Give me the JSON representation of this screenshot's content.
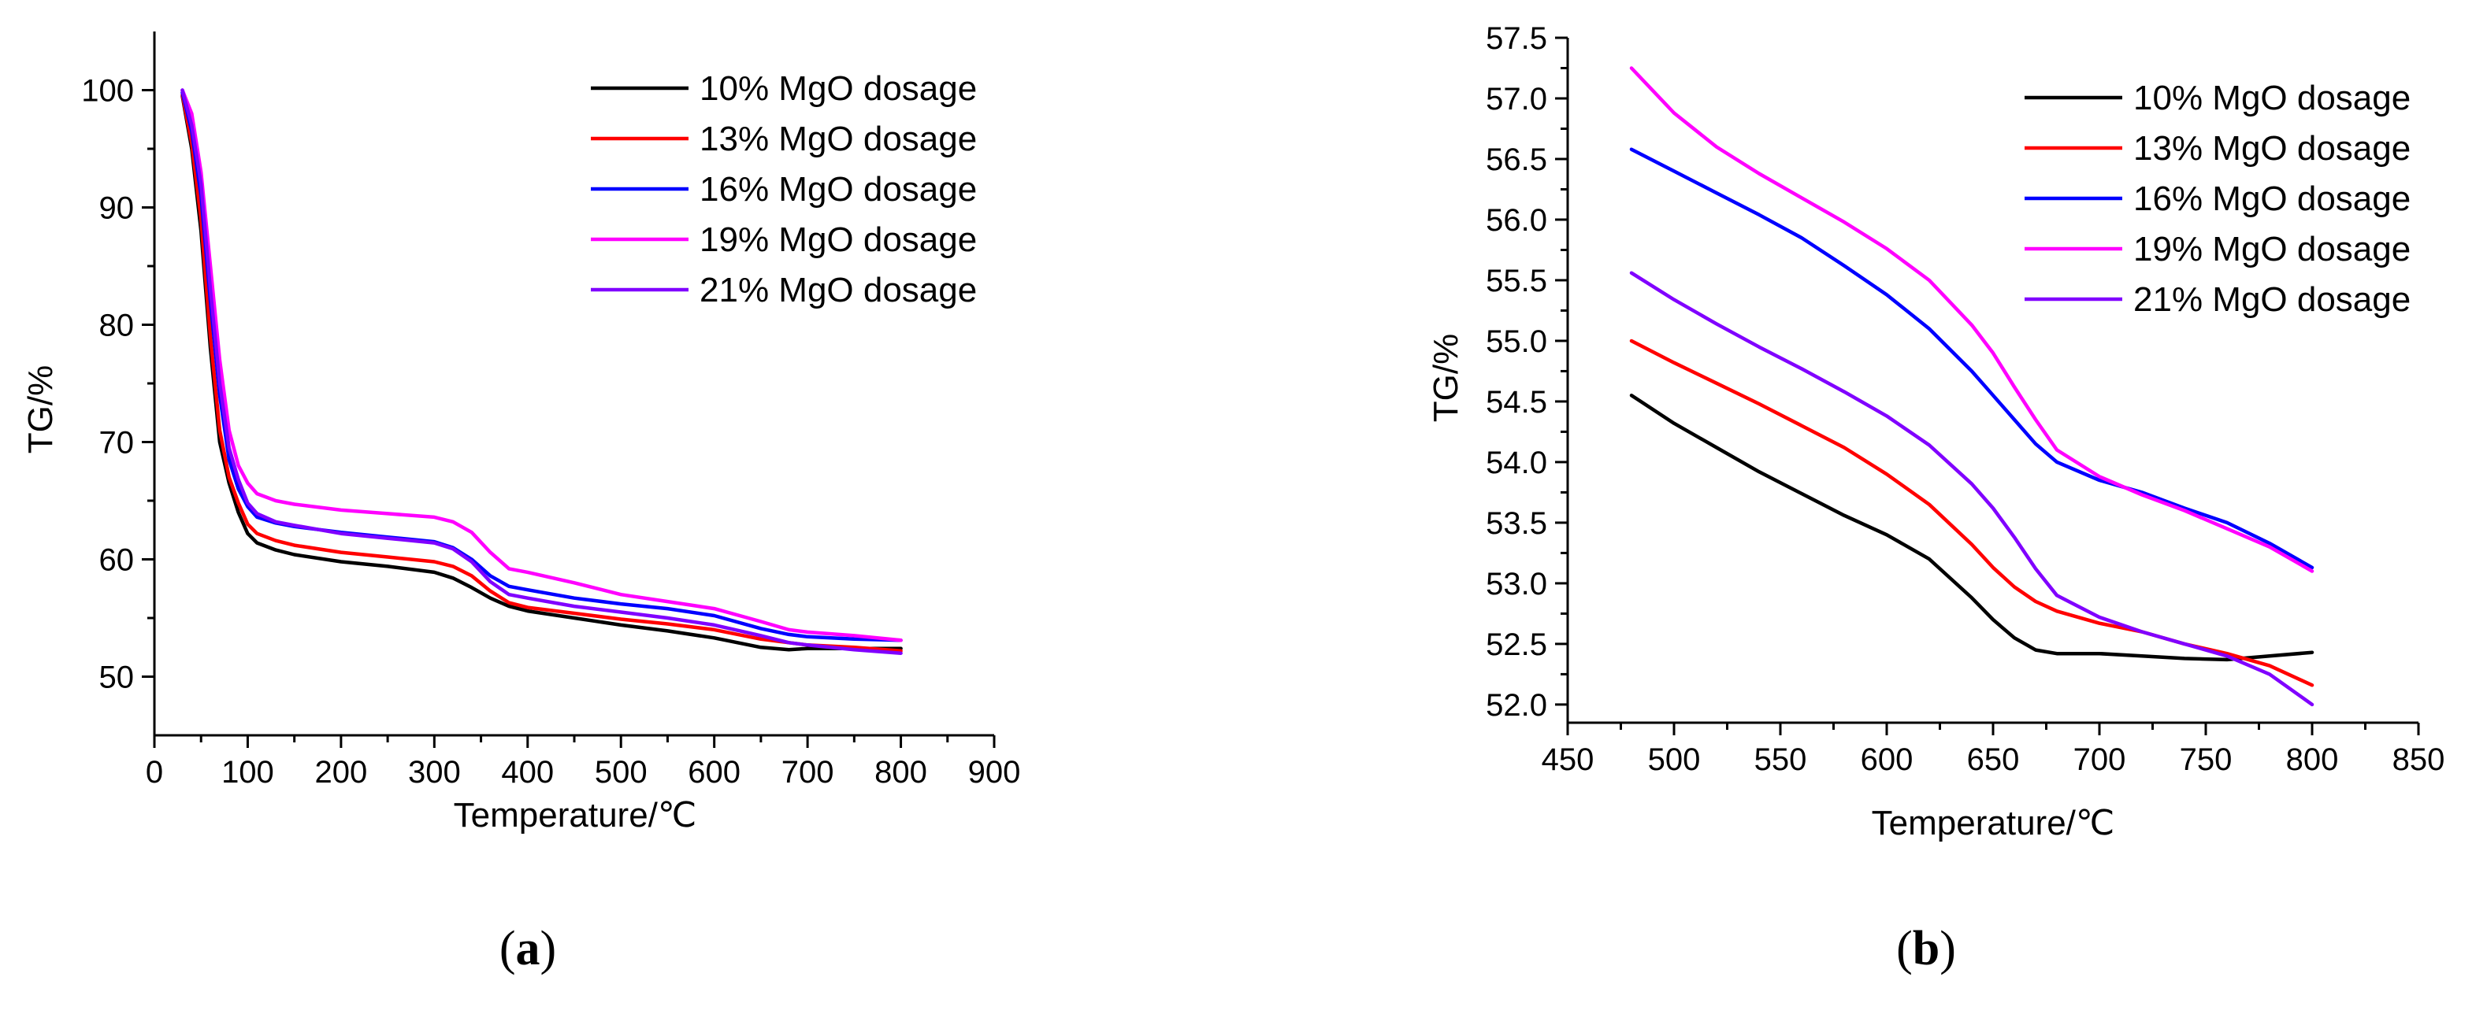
{
  "panel_labels": {
    "a": "a",
    "b": "b"
  },
  "chart_data": [
    {
      "id": "a",
      "type": "line",
      "xlabel": "Temperature/℃",
      "ylabel": "TG/%",
      "xlim": [
        0,
        900
      ],
      "ylim": [
        45,
        105
      ],
      "xticks": [
        0,
        100,
        200,
        300,
        400,
        500,
        600,
        700,
        800,
        900
      ],
      "yticks": [
        50,
        60,
        70,
        80,
        90,
        100
      ],
      "legend_position": "top-right",
      "series": [
        {
          "name": "10% MgO dosage",
          "color": "#000000",
          "x": [
            30,
            40,
            50,
            60,
            70,
            80,
            90,
            100,
            110,
            130,
            150,
            200,
            250,
            300,
            320,
            340,
            360,
            380,
            400,
            450,
            500,
            550,
            600,
            650,
            680,
            700,
            750,
            800
          ],
          "y": [
            99.5,
            95,
            88,
            78,
            70,
            66.5,
            64,
            62.2,
            61.4,
            60.8,
            60.4,
            59.8,
            59.4,
            58.9,
            58.4,
            57.6,
            56.7,
            56.0,
            55.6,
            55.0,
            54.4,
            53.9,
            53.3,
            52.5,
            52.3,
            52.4,
            52.4,
            52.4
          ]
        },
        {
          "name": "13% MgO dosage",
          "color": "#ff0000",
          "x": [
            30,
            40,
            50,
            60,
            70,
            80,
            90,
            100,
            110,
            130,
            150,
            200,
            250,
            300,
            320,
            340,
            360,
            380,
            400,
            450,
            500,
            550,
            600,
            650,
            680,
            700,
            750,
            800
          ],
          "y": [
            99.6,
            95.5,
            89,
            79,
            71,
            67,
            64.8,
            63.0,
            62.2,
            61.6,
            61.2,
            60.6,
            60.2,
            59.8,
            59.4,
            58.6,
            57.3,
            56.3,
            55.9,
            55.4,
            54.9,
            54.5,
            54.0,
            53.2,
            52.9,
            52.7,
            52.5,
            52.2
          ]
        },
        {
          "name": "16% MgO dosage",
          "color": "#0000ff",
          "x": [
            30,
            40,
            50,
            60,
            70,
            80,
            90,
            100,
            110,
            130,
            150,
            200,
            250,
            300,
            320,
            340,
            360,
            380,
            400,
            450,
            500,
            550,
            600,
            650,
            680,
            700,
            750,
            800
          ],
          "y": [
            99.8,
            96.5,
            91,
            82,
            74,
            68.5,
            66,
            64.5,
            63.6,
            63.1,
            62.8,
            62.3,
            61.9,
            61.5,
            61.0,
            60.0,
            58.6,
            57.7,
            57.4,
            56.7,
            56.2,
            55.8,
            55.2,
            54.1,
            53.6,
            53.4,
            53.2,
            53.1
          ]
        },
        {
          "name": "19% MgO dosage",
          "color": "#ff00ff",
          "x": [
            30,
            40,
            50,
            60,
            70,
            80,
            90,
            100,
            110,
            130,
            150,
            200,
            250,
            300,
            320,
            340,
            360,
            380,
            400,
            450,
            500,
            550,
            600,
            650,
            680,
            700,
            750,
            800
          ],
          "y": [
            100,
            98,
            93,
            85,
            77,
            71,
            68,
            66.5,
            65.6,
            65.0,
            64.7,
            64.2,
            63.9,
            63.6,
            63.2,
            62.3,
            60.6,
            59.2,
            58.9,
            58.0,
            57.0,
            56.4,
            55.8,
            54.7,
            54.0,
            53.8,
            53.5,
            53.1
          ]
        },
        {
          "name": "21% MgO dosage",
          "color": "#8000ff",
          "x": [
            30,
            40,
            50,
            60,
            70,
            80,
            90,
            100,
            110,
            130,
            150,
            200,
            250,
            300,
            320,
            340,
            360,
            380,
            400,
            450,
            500,
            550,
            600,
            650,
            680,
            700,
            750,
            800
          ],
          "y": [
            100,
            97,
            92,
            83,
            75,
            69.5,
            66.8,
            64.8,
            63.9,
            63.2,
            62.9,
            62.2,
            61.8,
            61.4,
            60.9,
            59.8,
            58.1,
            57.0,
            56.7,
            56.0,
            55.5,
            55.0,
            54.4,
            53.5,
            52.9,
            52.7,
            52.3,
            52.0
          ]
        }
      ]
    },
    {
      "id": "b",
      "type": "line",
      "xlabel": "Temperature/℃",
      "ylabel": "TG/%",
      "xlim": [
        450,
        850
      ],
      "ylim": [
        51.85,
        57.5
      ],
      "xticks": [
        450,
        500,
        550,
        600,
        650,
        700,
        750,
        800,
        850
      ],
      "yticks": [
        52.0,
        52.5,
        53.0,
        53.5,
        54.0,
        54.5,
        55.0,
        55.5,
        56.0,
        56.5,
        57.0,
        57.5
      ],
      "legend_position": "top-right",
      "series": [
        {
          "name": "10% MgO dosage",
          "color": "#000000",
          "x": [
            480,
            500,
            520,
            540,
            560,
            580,
            600,
            620,
            640,
            650,
            660,
            670,
            680,
            700,
            720,
            740,
            760,
            780,
            800
          ],
          "y": [
            54.55,
            54.32,
            54.12,
            53.92,
            53.74,
            53.56,
            53.4,
            53.2,
            52.88,
            52.7,
            52.55,
            52.45,
            52.42,
            52.42,
            52.4,
            52.38,
            52.37,
            52.4,
            52.43
          ]
        },
        {
          "name": "13% MgO dosage",
          "color": "#ff0000",
          "x": [
            480,
            500,
            520,
            540,
            560,
            580,
            600,
            620,
            640,
            650,
            660,
            670,
            680,
            700,
            720,
            740,
            760,
            780,
            800
          ],
          "y": [
            55.0,
            54.82,
            54.65,
            54.48,
            54.3,
            54.12,
            53.9,
            53.65,
            53.32,
            53.13,
            52.97,
            52.85,
            52.77,
            52.67,
            52.6,
            52.5,
            52.42,
            52.32,
            52.16
          ]
        },
        {
          "name": "16% MgO dosage",
          "color": "#0000ff",
          "x": [
            480,
            500,
            520,
            540,
            560,
            580,
            600,
            620,
            640,
            650,
            660,
            670,
            680,
            700,
            720,
            740,
            760,
            780,
            800
          ],
          "y": [
            56.58,
            56.4,
            56.22,
            56.04,
            55.85,
            55.62,
            55.38,
            55.1,
            54.75,
            54.55,
            54.35,
            54.15,
            54.0,
            53.85,
            53.75,
            53.62,
            53.5,
            53.33,
            53.13
          ]
        },
        {
          "name": "19% MgO dosage",
          "color": "#ff00ff",
          "x": [
            480,
            500,
            520,
            540,
            560,
            580,
            600,
            620,
            640,
            650,
            660,
            670,
            680,
            700,
            720,
            740,
            760,
            780,
            800
          ],
          "y": [
            57.25,
            56.88,
            56.6,
            56.38,
            56.18,
            55.98,
            55.76,
            55.5,
            55.13,
            54.9,
            54.62,
            54.35,
            54.1,
            53.88,
            53.73,
            53.6,
            53.45,
            53.3,
            53.1
          ]
        },
        {
          "name": "21% MgO dosage",
          "color": "#8000ff",
          "x": [
            480,
            500,
            520,
            540,
            560,
            580,
            600,
            620,
            640,
            650,
            660,
            670,
            680,
            700,
            720,
            740,
            760,
            780,
            800
          ],
          "y": [
            55.56,
            55.34,
            55.14,
            54.95,
            54.77,
            54.58,
            54.38,
            54.14,
            53.82,
            53.62,
            53.38,
            53.12,
            52.9,
            52.72,
            52.6,
            52.5,
            52.4,
            52.25,
            52.0
          ]
        }
      ]
    }
  ]
}
